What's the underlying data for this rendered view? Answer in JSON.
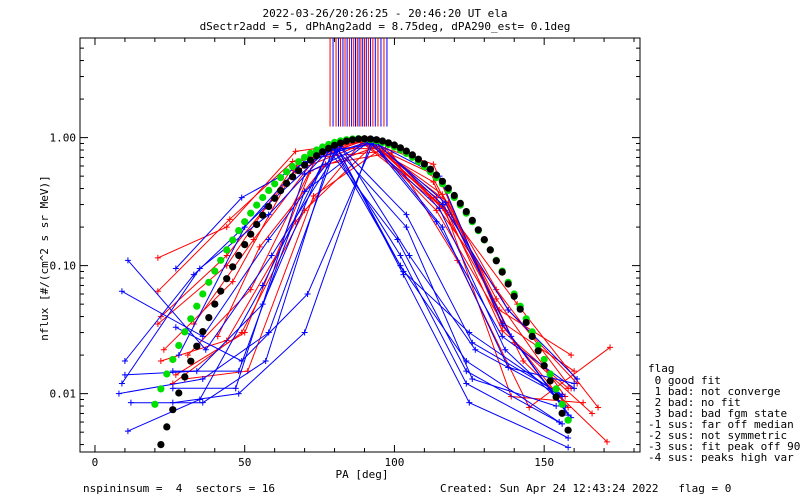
{
  "header": {
    "line1": "2022-03-26/20:26:25 - 20:46:20 UT ela",
    "line2": "dSectr2add = 5, dPhAng2add = 8.75deg, dPA290_est=   0.1deg"
  },
  "footer": {
    "left": "nspininsum =  4  sectors = 16",
    "right": "Created: Sun Apr 24 12:43:24 2022   flag = 0"
  },
  "legend": {
    "title": "flag",
    "items": [
      " 0 good fit",
      " 1 bad: not converge",
      " 2 bad: no fit",
      " 3 bad: bad fgm state",
      "-1 sus: far off median",
      "-2 sus: not symmetric",
      "-3 sus: fit peak off 90",
      "-4 sus: peaks high var"
    ]
  },
  "colors": {
    "red": "#ff0000",
    "blue": "#0000ff",
    "green": "#00e000",
    "black": "#000000"
  },
  "chart_data": {
    "type": "line",
    "xlabel": "PA [deg]",
    "ylabel": "nflux [#/(cm^2 s sr MeV)]",
    "xlim": [
      -5,
      182
    ],
    "ylim": [
      0.0035,
      6
    ],
    "yscale": "log",
    "xticks": [
      0,
      50,
      100,
      150
    ],
    "yticks": [
      {
        "v": 0.01,
        "label": "0.01"
      },
      {
        "v": 0.1,
        "label": "0.10"
      },
      {
        "v": 1,
        "label": "1.00"
      }
    ],
    "marker_lines": [
      {
        "x": 78.5,
        "c": "red"
      },
      {
        "x": 79.5,
        "c": "blue"
      },
      {
        "x": 80.5,
        "c": "red"
      },
      {
        "x": 81.3,
        "c": "blue"
      },
      {
        "x": 82.0,
        "c": "red"
      },
      {
        "x": 82.8,
        "c": "blue"
      },
      {
        "x": 83.5,
        "c": "red"
      },
      {
        "x": 84.2,
        "c": "blue"
      },
      {
        "x": 85.0,
        "c": "red"
      },
      {
        "x": 85.7,
        "c": "blue"
      },
      {
        "x": 86.4,
        "c": "red"
      },
      {
        "x": 87.0,
        "c": "blue"
      },
      {
        "x": 87.6,
        "c": "red"
      },
      {
        "x": 88.2,
        "c": "blue"
      },
      {
        "x": 88.8,
        "c": "red"
      },
      {
        "x": 89.4,
        "c": "blue"
      },
      {
        "x": 90.0,
        "c": "red"
      },
      {
        "x": 90.6,
        "c": "blue"
      },
      {
        "x": 91.3,
        "c": "red"
      },
      {
        "x": 92.0,
        "c": "blue"
      },
      {
        "x": 92.8,
        "c": "red"
      },
      {
        "x": 93.6,
        "c": "blue"
      },
      {
        "x": 94.5,
        "c": "red"
      },
      {
        "x": 95.5,
        "c": "blue"
      },
      {
        "x": 96.5,
        "c": "red"
      },
      {
        "x": 97.5,
        "c": "blue"
      }
    ],
    "series": [
      {
        "c": "red",
        "x": [
          21,
          44,
          67,
          90,
          113,
          136,
          158
        ],
        "y": [
          0.115,
          0.2,
          0.78,
          0.93,
          0.62,
          0.034,
          0.0078
        ]
      },
      {
        "c": "red",
        "x": [
          21,
          45,
          66,
          89,
          112,
          134,
          157
        ],
        "y": [
          0.063,
          0.23,
          0.65,
          0.95,
          0.53,
          0.055,
          0.0095
        ]
      },
      {
        "c": "red",
        "x": [
          22,
          44,
          67,
          90,
          114,
          135,
          159
        ],
        "y": [
          0.04,
          0.12,
          0.55,
          0.9,
          0.34,
          0.045,
          0.02
        ]
      },
      {
        "c": "red",
        "x": [
          21,
          44,
          66,
          89,
          113,
          136,
          158
        ],
        "y": [
          0.035,
          0.1,
          0.58,
          0.94,
          0.45,
          0.031,
          0.011
        ]
      },
      {
        "c": "red",
        "x": [
          23,
          46,
          68,
          91,
          114,
          136,
          160
        ],
        "y": [
          0.022,
          0.075,
          0.65,
          0.96,
          0.27,
          0.036,
          0.015
        ]
      },
      {
        "c": "red",
        "x": [
          22,
          44,
          67,
          89,
          112,
          134,
          159
        ],
        "y": [
          0.018,
          0.026,
          0.22,
          0.92,
          0.34,
          0.065,
          0.011
        ]
      },
      {
        "c": "red",
        "x": [
          26,
          49,
          70,
          93,
          116,
          138,
          161
        ],
        "y": [
          0.012,
          0.03,
          0.27,
          0.88,
          0.36,
          0.045,
          0.012
        ]
      },
      {
        "c": "red",
        "x": [
          27,
          50,
          72,
          94,
          117,
          139,
          163
        ],
        "y": [
          0.014,
          0.03,
          0.55,
          0.85,
          0.27,
          0.0095,
          0.0085
        ]
      },
      {
        "c": "red",
        "x": [
          30,
          51,
          73,
          95,
          118,
          140,
          166
        ],
        "y": [
          0.013,
          0.015,
          0.35,
          0.8,
          0.31,
          0.025,
          0.007
        ]
      },
      {
        "c": "red",
        "x": [
          31,
          52,
          74,
          96,
          119,
          141,
          168
        ],
        "y": [
          0.02,
          0.065,
          0.7,
          0.78,
          0.25,
          0.05,
          0.0078
        ]
      },
      {
        "c": "red",
        "x": [
          33,
          53,
          76,
          97,
          120,
          143,
          171
        ],
        "y": [
          0.035,
          0.16,
          0.82,
          0.82,
          0.22,
          0.018,
          0.0042
        ]
      },
      {
        "c": "red",
        "x": [
          41,
          55,
          77,
          99,
          121,
          145,
          172
        ],
        "y": [
          0.028,
          0.14,
          0.62,
          0.76,
          0.11,
          0.0078,
          0.023
        ]
      },
      {
        "c": "blue",
        "x": [
          9,
          36,
          58,
          81,
          104,
          126,
          154
        ],
        "y": [
          0.063,
          0.028,
          0.16,
          0.8,
          0.2,
          0.013,
          0.008
        ]
      },
      {
        "c": "blue",
        "x": [
          11,
          37,
          59,
          82,
          105,
          127,
          155
        ],
        "y": [
          0.11,
          0.022,
          0.12,
          0.85,
          0.12,
          0.022,
          0.0098
        ]
      },
      {
        "c": "blue",
        "x": [
          8,
          36,
          58,
          81,
          104,
          126,
          156
        ],
        "y": [
          0.01,
          0.013,
          0.03,
          0.9,
          0.25,
          0.025,
          0.0098
        ]
      },
      {
        "c": "blue",
        "x": [
          9,
          35,
          58,
          80,
          103,
          125,
          156
        ],
        "y": [
          0.012,
          0.095,
          0.25,
          0.9,
          0.09,
          0.03,
          0.0095
        ]
      },
      {
        "c": "blue",
        "x": [
          10,
          33,
          57,
          79,
          102,
          124,
          155
        ],
        "y": [
          0.018,
          0.085,
          0.29,
          0.86,
          0.1,
          0.018,
          0.006
        ]
      },
      {
        "c": "blue",
        "x": [
          10,
          34,
          56,
          78,
          101,
          124,
          156
        ],
        "y": [
          0.014,
          0.015,
          0.05,
          0.8,
          0.16,
          0.015,
          0.0058
        ]
      },
      {
        "c": "blue",
        "x": [
          12,
          36,
          57,
          80,
          103,
          125,
          158
        ],
        "y": [
          0.0085,
          0.0085,
          0.018,
          0.92,
          0.085,
          0.0085,
          0.0038
        ]
      },
      {
        "c": "blue",
        "x": [
          11,
          35,
          56,
          79,
          102,
          124,
          158
        ],
        "y": [
          0.0051,
          0.009,
          0.07,
          0.88,
          0.12,
          0.012,
          0.0045
        ]
      },
      {
        "c": "blue",
        "x": [
          26,
          48,
          70,
          92,
          115,
          137,
          157
        ],
        "y": [
          0.0085,
          0.01,
          0.03,
          0.9,
          0.28,
          0.022,
          0.008
        ]
      },
      {
        "c": "blue",
        "x": [
          27,
          49,
          71,
          93,
          116,
          138,
          160
        ],
        "y": [
          0.033,
          0.018,
          0.06,
          0.92,
          0.2,
          0.016,
          0.012
        ]
      },
      {
        "c": "blue",
        "x": [
          26,
          48,
          70,
          92,
          115,
          136,
          159
        ],
        "y": [
          0.015,
          0.015,
          0.38,
          0.95,
          0.5,
          0.035,
          0.0065
        ]
      },
      {
        "c": "blue",
        "x": [
          27,
          49,
          71,
          93,
          116,
          138,
          161
        ],
        "y": [
          0.095,
          0.34,
          0.65,
          0.96,
          0.3,
          0.045,
          0.013
        ]
      },
      {
        "c": "blue",
        "x": [
          26,
          47,
          70,
          92,
          114,
          136,
          160
        ],
        "y": [
          0.011,
          0.011,
          0.52,
          0.93,
          0.22,
          0.028,
          0.011
        ]
      },
      {
        "c": "blue",
        "x": [
          28,
          50,
          72,
          94,
          117,
          139,
          158
        ],
        "y": [
          0.02,
          0.2,
          0.75,
          0.9,
          0.31,
          0.028,
          0.0068
        ]
      }
    ],
    "models": [
      {
        "c": "green",
        "x0": 20,
        "x1": 158,
        "step": 2,
        "peak": 0.98,
        "center": 88,
        "sigL": 22.0,
        "sigR": 22.0
      },
      {
        "c": "black",
        "x0": 20,
        "x1": 158,
        "step": 2,
        "peak": 0.98,
        "center": 90,
        "sigL": 20.5,
        "sigR": 21.0
      }
    ]
  }
}
